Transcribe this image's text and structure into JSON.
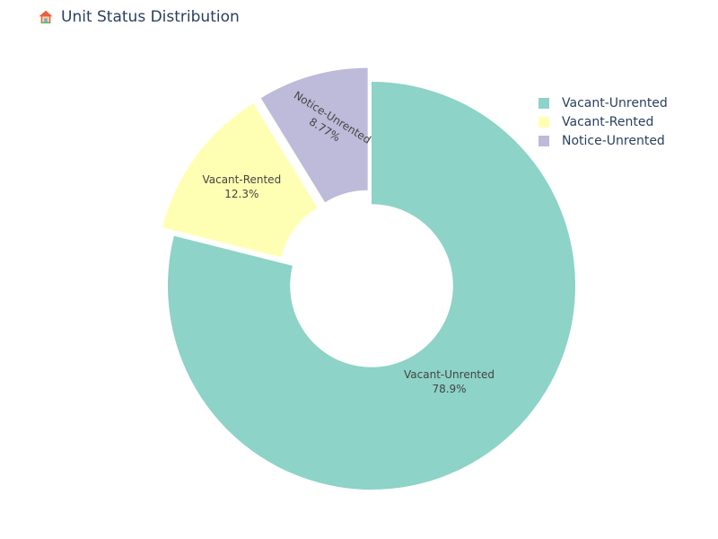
{
  "title": {
    "icon": "house-icon",
    "text": "Unit Status Distribution"
  },
  "legend": {
    "placement": "top-right",
    "items": [
      {
        "label": "Vacant-Unrented",
        "color": "#8dd3c7"
      },
      {
        "label": "Vacant-Rented",
        "color": "#ffffb3"
      },
      {
        "label": "Notice-Unrented",
        "color": "#bebada"
      }
    ]
  },
  "chart_data": {
    "type": "pie",
    "title": "Unit Status Distribution",
    "hole": 0.4,
    "sort": "descending",
    "direction": "clockwise",
    "labels": [
      "Vacant-Unrented",
      "Vacant-Rented",
      "Notice-Unrented"
    ],
    "values": [
      78.9,
      12.3,
      8.77
    ],
    "percent_labels": [
      "78.9%",
      "12.3%",
      "8.77%"
    ],
    "colors": [
      "#8dd3c7",
      "#ffffb3",
      "#bebada"
    ],
    "pulled_slices": [
      "Vacant-Rented",
      "Notice-Unrented"
    ],
    "legend_placement": "top-right"
  }
}
